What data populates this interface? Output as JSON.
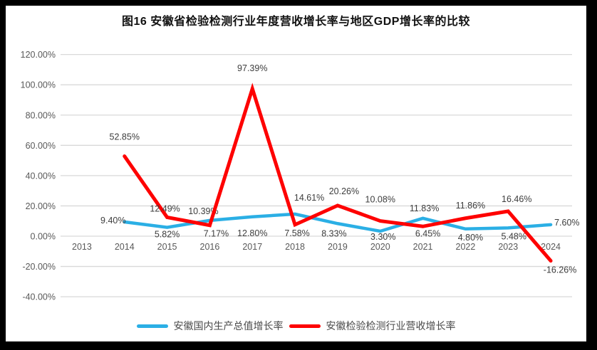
{
  "title": "图16 安徽省检验检测行业年度营收增长率与地区GDP增长率的比较",
  "frame": {
    "border_color": "#000000",
    "background": "#ffffff"
  },
  "legend": {
    "position": "bottom",
    "items": [
      {
        "label": "安徽国内生产总值增长率",
        "color": "#2BAFE5"
      },
      {
        "label": "安徽检验检测行业营收增长率",
        "color": "#FE0000"
      }
    ]
  },
  "chart_data": {
    "type": "line",
    "title": "图16 安徽省检验检测行业年度营收增长率与地区GDP增长率的比较",
    "xlabel": "",
    "ylabel": "",
    "grid": true,
    "grid_color": "#D9D9D9",
    "axis_text_color": "#595959",
    "ylim": [
      -40,
      120
    ],
    "ytick_step": 20,
    "categories": [
      "2013",
      "2014",
      "2015",
      "2016",
      "2017",
      "2018",
      "2019",
      "2020",
      "2021",
      "2022",
      "2023",
      "2024"
    ],
    "yticks": [
      {
        "label": "120.00%",
        "value": 120
      },
      {
        "label": "100.00%",
        "value": 100
      },
      {
        "label": "80.00%",
        "value": 80
      },
      {
        "label": "60.00%",
        "value": 60
      },
      {
        "label": "40.00%",
        "value": 40
      },
      {
        "label": "20.00%",
        "value": 20
      },
      {
        "label": "0.00%",
        "value": 0
      },
      {
        "label": "-20.00%",
        "value": -20
      },
      {
        "label": "-40.00%",
        "value": -40
      }
    ],
    "series": [
      {
        "name": "安徽国内生产总值增长率",
        "color": "#2BAFE5",
        "stroke_width": 4.5,
        "values": [
          null,
          9.4,
          5.82,
          10.39,
          12.8,
          14.61,
          8.33,
          3.3,
          11.83,
          4.8,
          5.48,
          7.6
        ],
        "labels": [
          null,
          "9.40%",
          "5.82%",
          "10.39%",
          "12.80%",
          "14.61%",
          "8.33%",
          "3.30%",
          "11.83%",
          "4.80%",
          "5.48%",
          "7.60%"
        ],
        "label_offsets": [
          null,
          [
            -16,
            2
          ],
          [
            0,
            14
          ],
          [
            -9,
            -9
          ],
          [
            0,
            27
          ],
          [
            20,
            -19
          ],
          [
            -5,
            18
          ],
          [
            4,
            12
          ],
          [
            2,
            -10
          ],
          [
            7,
            16
          ],
          [
            8,
            16
          ],
          [
            5,
            1
          ]
        ],
        "label_anchors": [
          null,
          "middle",
          "middle",
          "middle",
          "middle",
          "middle",
          "middle",
          "middle",
          "middle",
          "middle",
          "middle",
          "start"
        ]
      },
      {
        "name": "安徽检验检测行业营收增长率",
        "color": "#FE0000",
        "stroke_width": 5,
        "values": [
          null,
          52.85,
          12.49,
          7.17,
          97.39,
          7.58,
          20.26,
          10.08,
          6.45,
          11.86,
          16.46,
          -16.26
        ],
        "labels": [
          null,
          "52.85%",
          "12.49%",
          "7.17%",
          "97.39%",
          "7.58%",
          "20.26%",
          "10.08%",
          "6.45%",
          "11.86%",
          "16.46%",
          "-16.26%"
        ],
        "label_offsets": [
          null,
          [
            0,
            -23
          ],
          [
            -3,
            -8
          ],
          [
            9,
            16
          ],
          [
            0,
            -25
          ],
          [
            3,
            16
          ],
          [
            9,
            -16
          ],
          [
            0,
            -26
          ],
          [
            7,
            14
          ],
          [
            7,
            -14
          ],
          [
            12,
            -13
          ],
          [
            13,
            17
          ]
        ],
        "label_anchors": [
          null,
          "middle",
          "middle",
          "middle",
          "middle",
          "middle",
          "middle",
          "middle",
          "middle",
          "middle",
          "middle",
          "middle"
        ]
      }
    ]
  }
}
